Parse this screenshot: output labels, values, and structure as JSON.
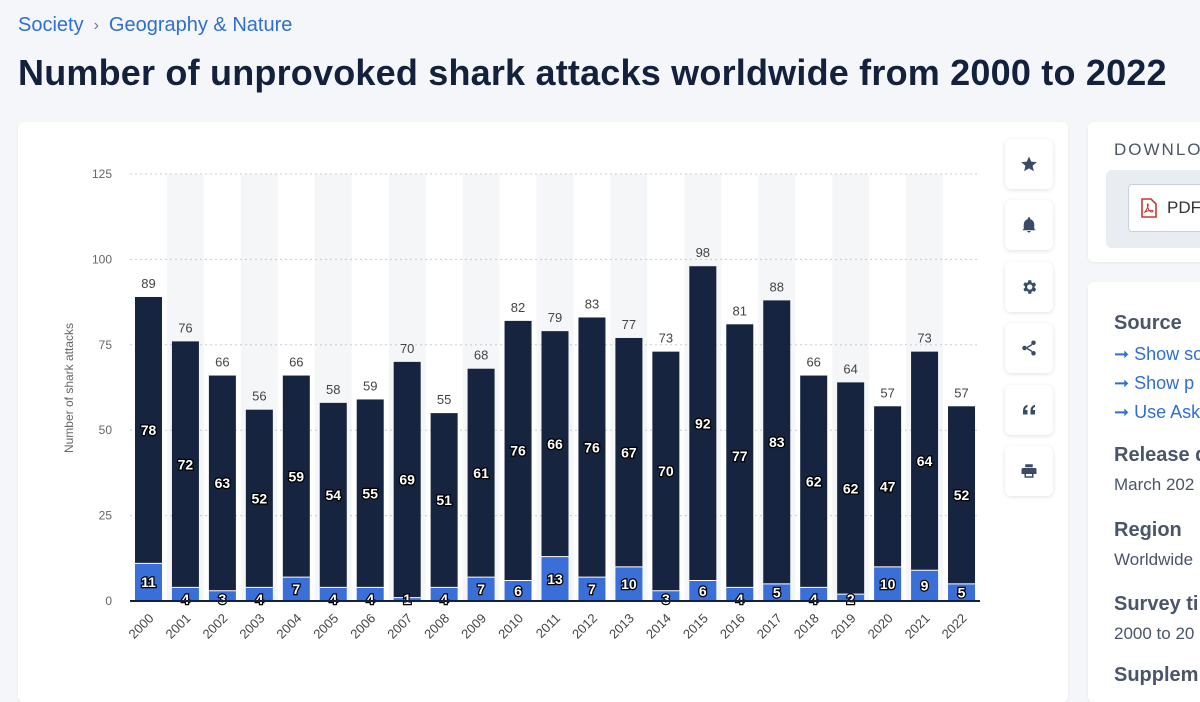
{
  "breadcrumb": {
    "items": [
      "Society",
      "Geography & Nature"
    ],
    "separator": "›"
  },
  "title": "Number of unprovoked shark attacks worldwide from 2000 to 2022",
  "colors": {
    "dark_series": "#16243f",
    "blue_series": "#3a6fd8",
    "accent": "#2f6fcf"
  },
  "toolbar": {
    "icons": [
      "star-icon",
      "bell-icon",
      "gear-icon",
      "share-icon",
      "quote-icon",
      "print-icon"
    ]
  },
  "sidebar": {
    "download_title": "DOWNLO",
    "pdf_label": "PDF",
    "source_heading": "Source",
    "source_links": [
      "Show so",
      "Show p",
      "Use Ask"
    ],
    "release_heading": "Release d",
    "release_value": "March 202",
    "region_heading": "Region",
    "region_value": "Worldwide",
    "survey_heading": "Survey ti",
    "survey_value": "2000 to 20",
    "supplementary_heading": "Supplem"
  },
  "chart_data": {
    "type": "bar",
    "stacked": true,
    "ylabel": "Number of shark attacks",
    "ylim": [
      0,
      125
    ],
    "yticks": [
      0,
      25,
      50,
      75,
      100,
      125
    ],
    "grid": true,
    "categories": [
      "2000",
      "2001",
      "2002",
      "2003",
      "2004",
      "2005",
      "2006",
      "2007",
      "2008",
      "2009",
      "2010",
      "2011",
      "2012",
      "2013",
      "2014",
      "2015",
      "2016",
      "2017",
      "2018",
      "2019",
      "2020",
      "2021",
      "2022"
    ],
    "totals": [
      89,
      76,
      66,
      56,
      66,
      58,
      59,
      70,
      55,
      68,
      82,
      79,
      83,
      77,
      73,
      98,
      81,
      88,
      66,
      64,
      57,
      73,
      57
    ],
    "series": [
      {
        "values": [
          11,
          4,
          3,
          4,
          7,
          4,
          4,
          1,
          4,
          7,
          6,
          13,
          7,
          10,
          3,
          6,
          4,
          5,
          4,
          2,
          10,
          9,
          5
        ]
      },
      {
        "values": [
          78,
          72,
          63,
          52,
          59,
          54,
          55,
          69,
          51,
          61,
          76,
          66,
          76,
          67,
          70,
          92,
          77,
          83,
          62,
          62,
          47,
          64,
          52
        ]
      }
    ]
  }
}
